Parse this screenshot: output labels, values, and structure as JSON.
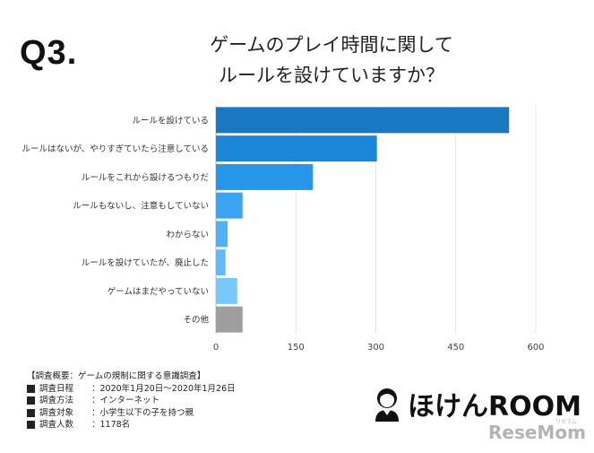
{
  "question_number": "Q3.",
  "title_line1": "ゲームのプレイ時間に関して",
  "title_line2": "ルールを設けていますか？",
  "chart_data": {
    "type": "bar",
    "orientation": "horizontal",
    "categories": [
      "ルールを設けている",
      "ルールはないが、やりすぎていたら注意している",
      "ルールをこれから設けるつもりだ",
      "ルールもないし、注意もしていない",
      "わからない",
      "ルールを設けていたが、廃止した",
      "ゲームはまだやっていない",
      "その他"
    ],
    "values": [
      550,
      302,
      182,
      50,
      22,
      18,
      40,
      50
    ],
    "bar_colors": [
      "#1a78c2",
      "#1a86d6",
      "#2896e8",
      "#3aa3f2",
      "#4fb0f7",
      "#5fbaf9",
      "#78c8fb",
      "#9e9e9e"
    ],
    "xticks": [
      0,
      150,
      300,
      450,
      600
    ],
    "xlim": [
      0,
      600
    ],
    "grid": true,
    "title": "ゲームのプレイ時間に関して ルールを設けていますか？",
    "xlabel": "",
    "ylabel": ""
  },
  "survey": {
    "heading": "【調査概要：ゲームの規制に関する意識調査】",
    "rows": [
      {
        "label": "調査日程",
        "value": "：2020年1月20日〜2020年1月26日"
      },
      {
        "label": "調査方法",
        "value": "：インターネット"
      },
      {
        "label": "調査対象",
        "value": "：小学生以下の子を持つ親"
      },
      {
        "label": "調査人数",
        "value": "：1178名"
      }
    ]
  },
  "brand": {
    "name": "ほけんROOM",
    "icon": "person-avatar-icon",
    "resemom": "ReseMom",
    "resemom_sub": "リセマム"
  }
}
